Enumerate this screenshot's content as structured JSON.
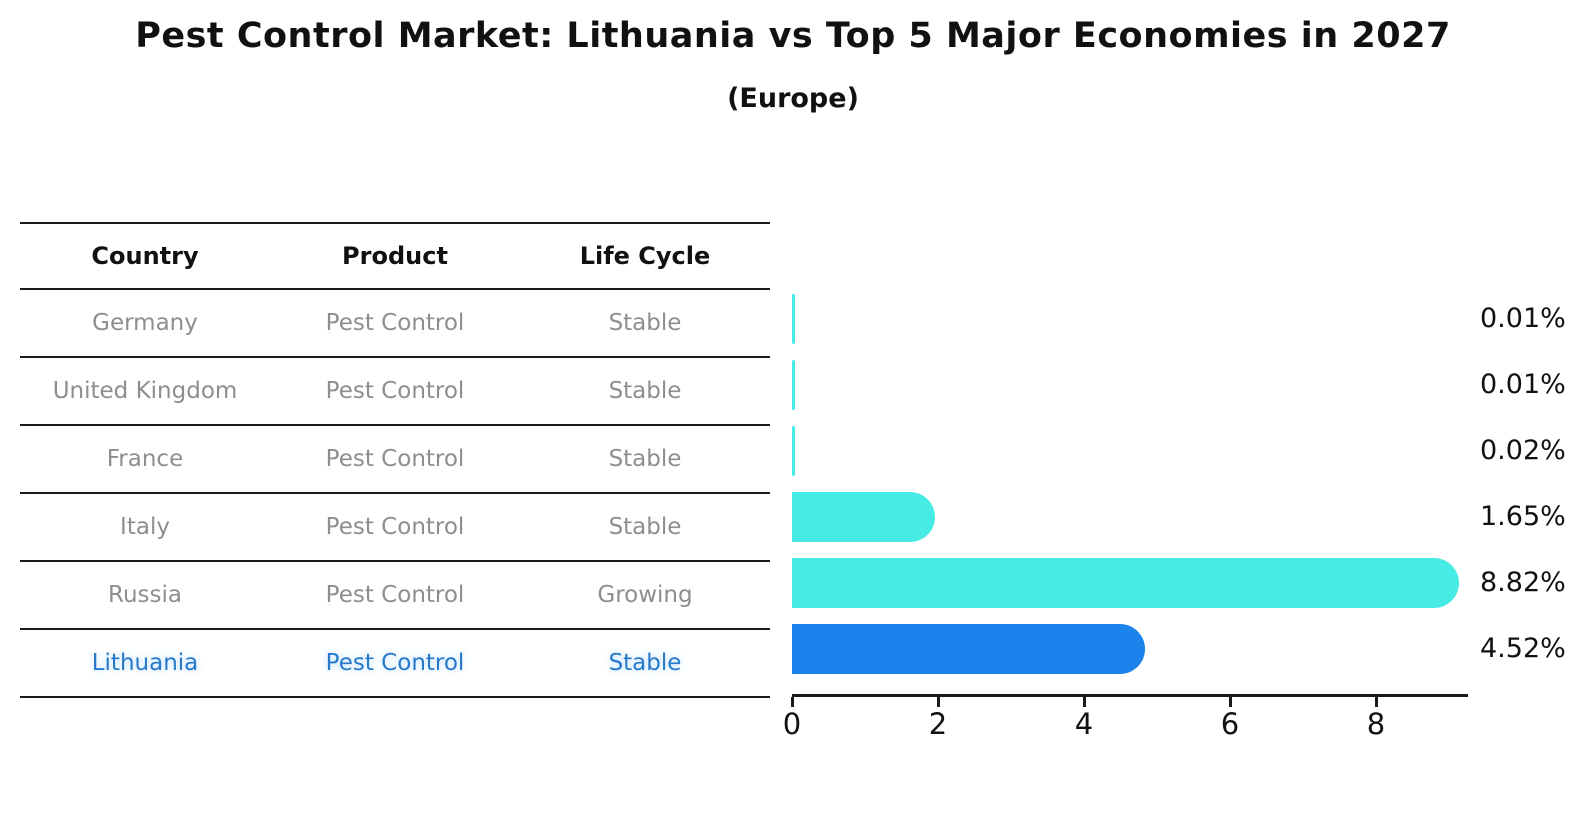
{
  "chart_data": {
    "type": "bar",
    "orientation": "horizontal",
    "title": "Pest Control Market: Lithuania vs Top 5 Major Economies in 2027",
    "subtitle": "(Europe)",
    "categories": [
      "Germany",
      "United Kingdom",
      "France",
      "Italy",
      "Russia",
      "Lithuania"
    ],
    "values": [
      0.01,
      0.01,
      0.02,
      1.65,
      8.82,
      4.52
    ],
    "value_labels": [
      "0.01%",
      "0.01%",
      "0.02%",
      "1.65%",
      "8.82%",
      "4.52%"
    ],
    "x_ticks": [
      "0",
      "2",
      "4",
      "6",
      "8"
    ],
    "xlim": [
      0,
      9.26
    ],
    "grid": false,
    "legend": "none",
    "bar_color": "#46EBE4",
    "highlight_color": "#1C82EC",
    "highlight_index": 5
  },
  "table": {
    "headers": [
      "Country",
      "Product",
      "Life Cycle"
    ],
    "rows": [
      {
        "country": "Germany",
        "product": "Pest Control",
        "life_cycle": "Stable",
        "highlighted": false
      },
      {
        "country": "United Kingdom",
        "product": "Pest Control",
        "life_cycle": "Stable",
        "highlighted": false
      },
      {
        "country": "France",
        "product": "Pest Control",
        "life_cycle": "Stable",
        "highlighted": false
      },
      {
        "country": "Italy",
        "product": "Pest Control",
        "life_cycle": "Stable",
        "highlighted": false
      },
      {
        "country": "Russia",
        "product": "Pest Control",
        "life_cycle": "Growing",
        "highlighted": false
      },
      {
        "country": "Lithuania",
        "product": "Pest Control",
        "life_cycle": "Stable",
        "highlighted": true
      }
    ]
  },
  "colors": {
    "bar_cyan": "#46EBE4",
    "bar_blue": "#1C82EC",
    "highlight_text_blue": "#2879C8",
    "table_text_gray": "#8e8e8e",
    "line_black": "#1a1a1a"
  }
}
